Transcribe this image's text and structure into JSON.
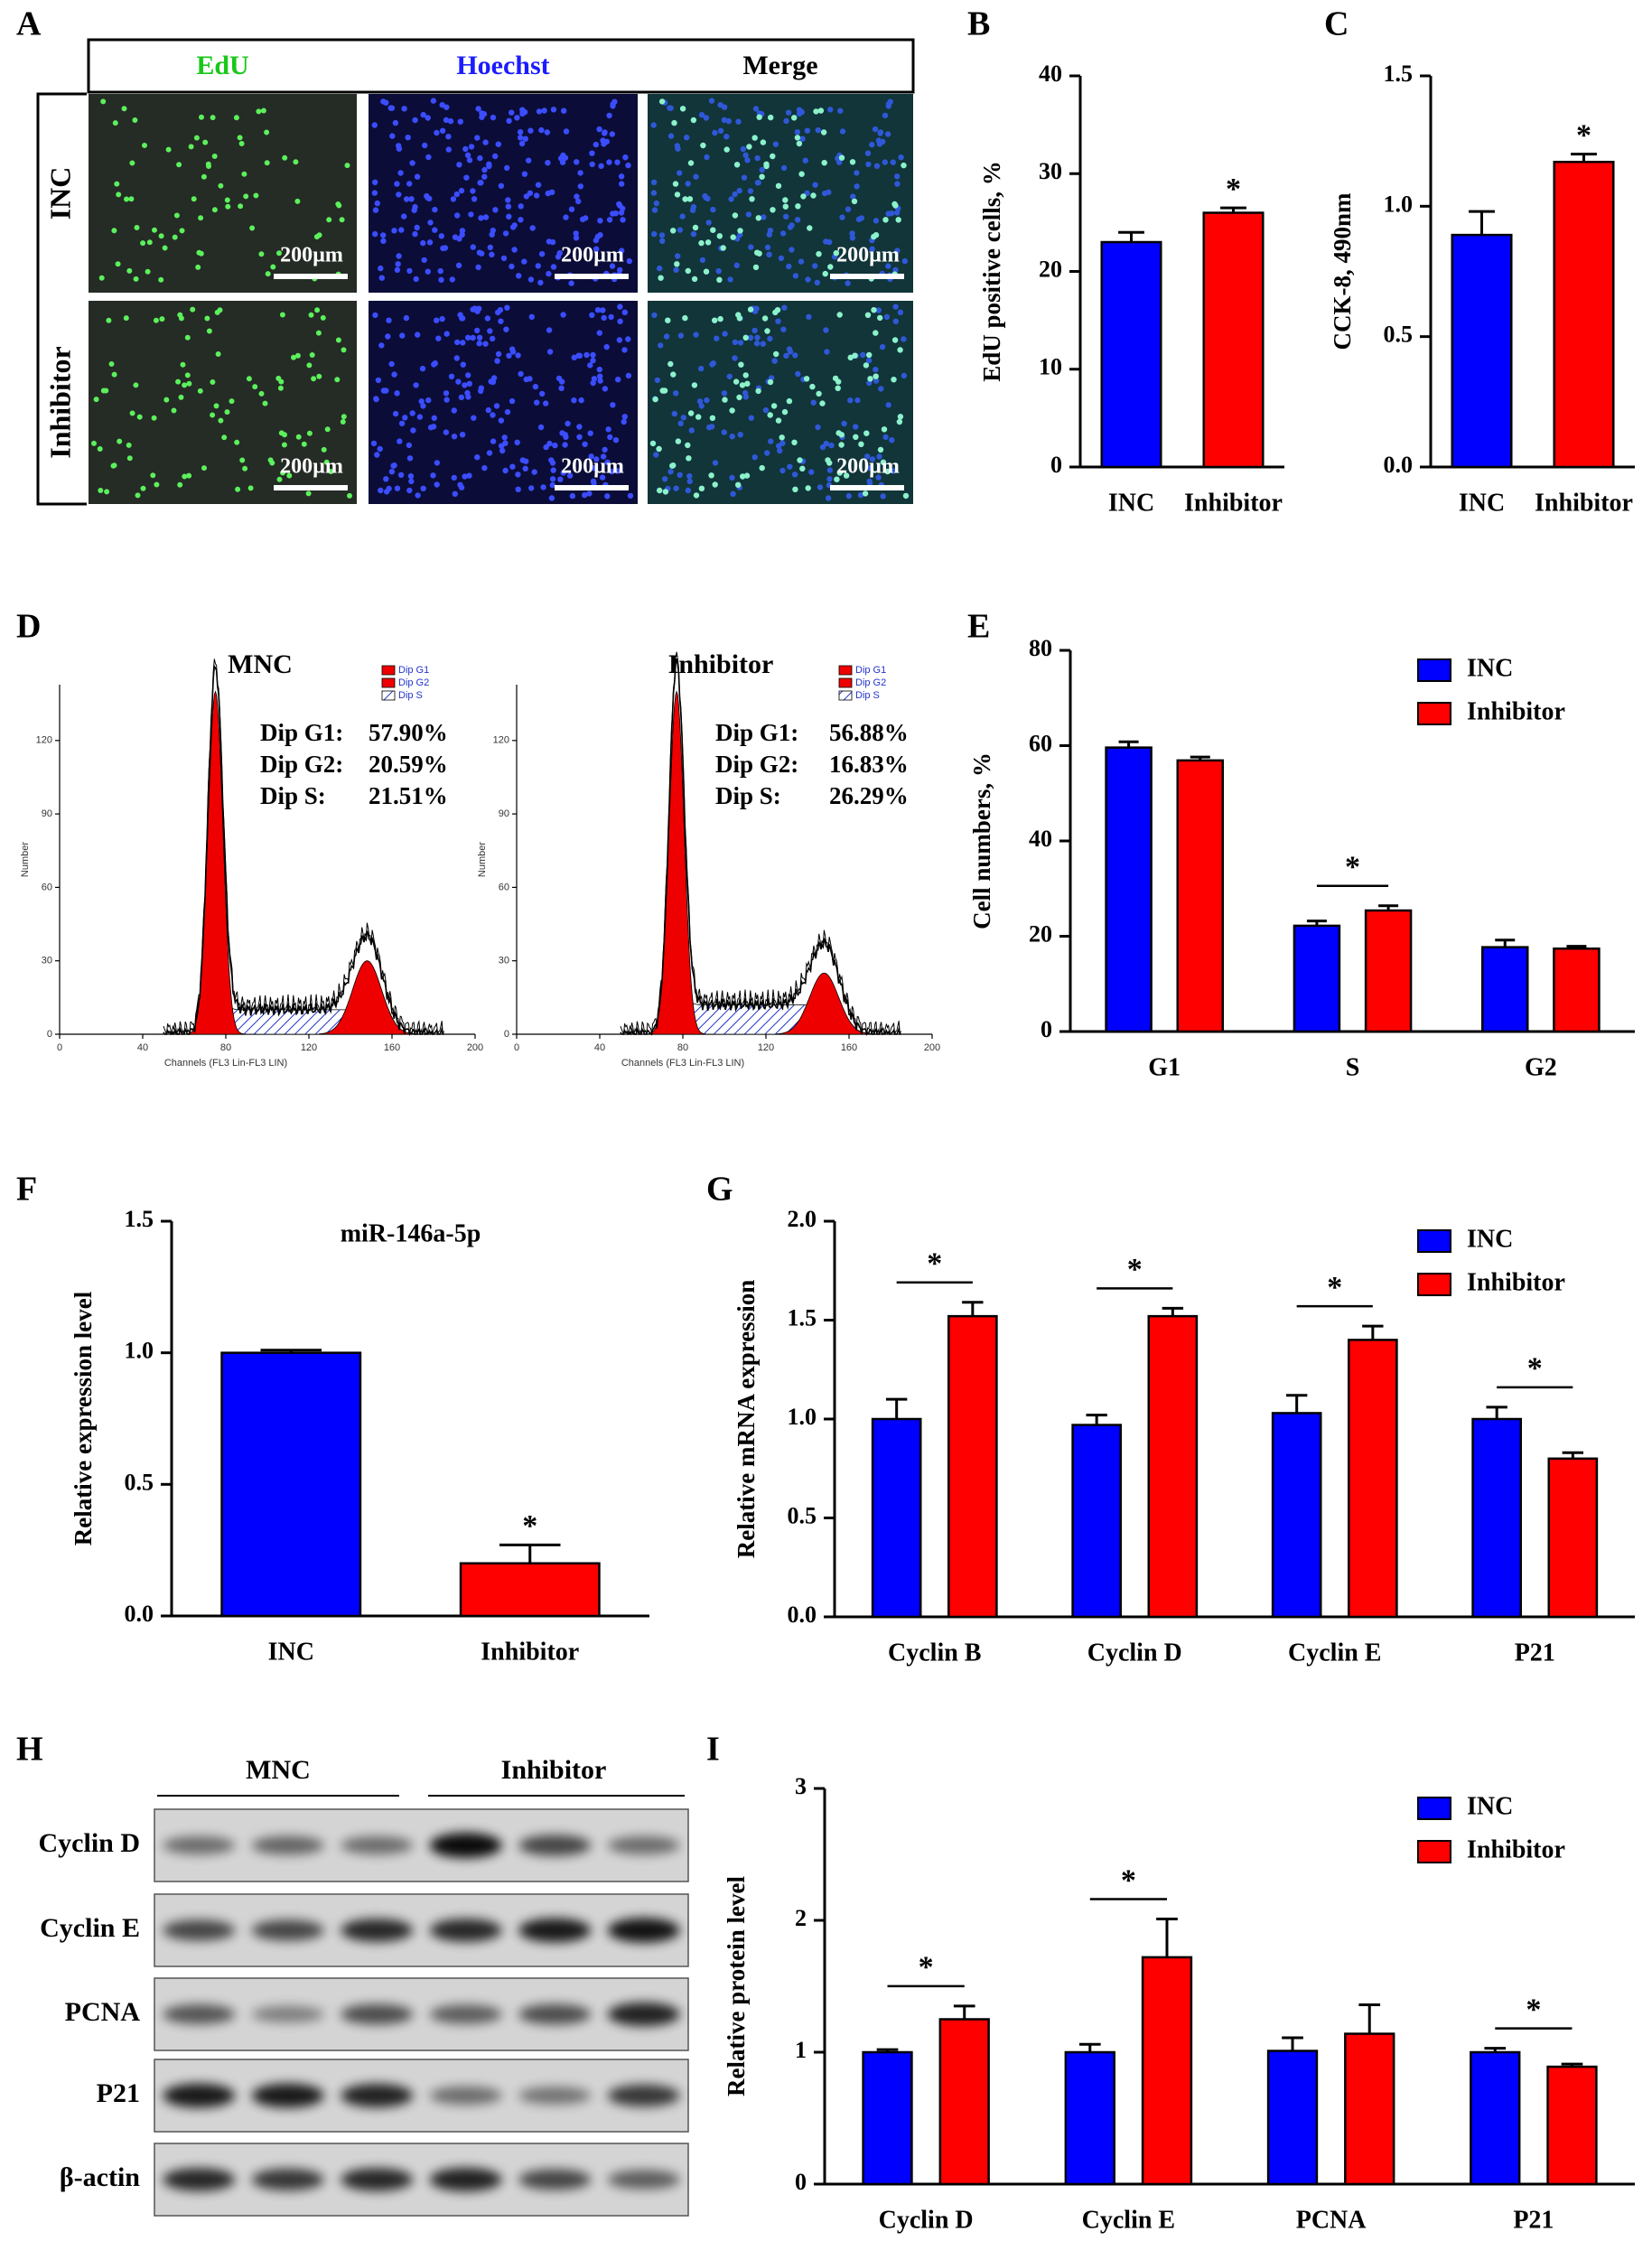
{
  "panel_labels": [
    "A",
    "B",
    "C",
    "D",
    "E",
    "F",
    "G",
    "H",
    "I"
  ],
  "panel_a": {
    "columns": [
      "EdU",
      "Hoechst",
      "Merge"
    ],
    "rows": [
      "INC",
      "Inhibitor"
    ],
    "scale_bar": "200µm"
  },
  "panel_d": {
    "plots": [
      {
        "title": "MNC",
        "stats": [
          {
            "label": "Dip G1:",
            "value": "57.90%"
          },
          {
            "label": "Dip G2:",
            "value": "20.59%"
          },
          {
            "label": "Dip S:",
            "value": "21.51%"
          }
        ]
      },
      {
        "title": "Inhibitor",
        "stats": [
          {
            "label": "Dip G1:",
            "value": "56.88%"
          },
          {
            "label": "Dip G2:",
            "value": "16.83%"
          },
          {
            "label": "Dip S:",
            "value": "26.29%"
          }
        ]
      }
    ],
    "legend": [
      "Dip G1",
      "Dip G2",
      "Dip S"
    ],
    "x_label": "Channels (FL3 Lin-FL3 LIN)",
    "y_label": "Number",
    "xticks": [
      0,
      40,
      80,
      120,
      160,
      200
    ],
    "yticks": [
      0,
      30,
      60,
      90,
      120
    ]
  },
  "panel_h": {
    "groups": [
      "MNC",
      "Inhibitor"
    ],
    "rows": [
      "Cyclin D",
      "Cyclin E",
      "PCNA",
      "P21",
      "β-actin"
    ]
  },
  "chart_data": [
    {
      "type": "bar",
      "y_label": "EdU positive cells, %",
      "categories": [
        "INC",
        "Inhibitor"
      ],
      "values": [
        23,
        26
      ],
      "errors": [
        1,
        0.5
      ],
      "colors": [
        "#0000ff",
        "#ff0000"
      ],
      "ylim": [
        0,
        40
      ],
      "yticks": [
        0,
        10,
        20,
        30,
        40
      ],
      "annotations": [
        {
          "text": "*",
          "category": "Inhibitor"
        }
      ]
    },
    {
      "type": "bar",
      "y_label": "CCK-8, 490nm",
      "categories": [
        "INC",
        "Inhibitor"
      ],
      "values": [
        0.89,
        1.17
      ],
      "errors": [
        0.09,
        0.03
      ],
      "colors": [
        "#0000ff",
        "#ff0000"
      ],
      "ylim": [
        0,
        1.5
      ],
      "yticks": [
        {
          "value": 0,
          "label": "0.0"
        },
        0.5,
        {
          "value": 1,
          "label": "1.0"
        },
        1.5
      ],
      "annotations": [
        {
          "text": "*",
          "category": "Inhibitor"
        }
      ]
    },
    {
      "type": "bar",
      "y_label": "Cell numbers, %",
      "categories": [
        "G1",
        "S",
        "G2"
      ],
      "series": [
        {
          "name": "INC",
          "color": "#0000ff",
          "values": [
            59.6,
            22.2,
            17.7
          ],
          "errors": [
            1.2,
            1,
            1.5
          ]
        },
        {
          "name": "Inhibitor",
          "color": "#ff0000",
          "values": [
            56.9,
            25.4,
            17.4
          ],
          "errors": [
            0.7,
            1,
            0.5
          ]
        }
      ],
      "ylim": [
        0,
        80
      ],
      "yticks": [
        0,
        20,
        40,
        60,
        80
      ],
      "legend": "upper right",
      "annotations": [
        {
          "text": "*",
          "category": "S"
        }
      ]
    },
    {
      "type": "bar",
      "title": "miR-146a-5p",
      "y_label": "Relative expression level",
      "categories": [
        "INC",
        "Inhibitor"
      ],
      "values": [
        1.0,
        0.2
      ],
      "errors": [
        0.01,
        0.07
      ],
      "colors": [
        "#0000ff",
        "#ff0000"
      ],
      "ylim": [
        0,
        1.5
      ],
      "yticks": [
        {
          "value": 0,
          "label": "0.0"
        },
        0.5,
        {
          "value": 1,
          "label": "1.0"
        },
        1.5
      ],
      "annotations": [
        {
          "text": "*",
          "category": "Inhibitor"
        }
      ]
    },
    {
      "type": "bar",
      "y_label": "Relative mRNA expression",
      "categories": [
        "Cyclin B",
        "Cyclin D",
        "Cyclin E",
        "P21"
      ],
      "series": [
        {
          "name": "INC",
          "color": "#0000ff",
          "values": [
            1.0,
            0.97,
            1.03,
            1.0
          ],
          "errors": [
            0.1,
            0.05,
            0.09,
            0.06
          ]
        },
        {
          "name": "Inhibitor",
          "color": "#ff0000",
          "values": [
            1.52,
            1.52,
            1.4,
            0.8
          ],
          "errors": [
            0.07,
            0.04,
            0.07,
            0.03
          ]
        }
      ],
      "ylim": [
        0,
        2
      ],
      "yticks": [
        {
          "value": 0,
          "label": "0.0"
        },
        0.5,
        {
          "value": 1,
          "label": "1.0"
        },
        1.5,
        {
          "value": 2,
          "label": "2.0"
        }
      ],
      "legend": "upper right",
      "annotations": [
        {
          "text": "*",
          "category": "Cyclin B"
        },
        {
          "text": "*",
          "category": "Cyclin D"
        },
        {
          "text": "*",
          "category": "Cyclin E"
        },
        {
          "text": "*",
          "category": "P21"
        }
      ]
    },
    {
      "type": "bar",
      "y_label": "Relative protein level",
      "categories": [
        "Cyclin D",
        "Cyclin E",
        "PCNA",
        "P21"
      ],
      "series": [
        {
          "name": "INC",
          "color": "#0000ff",
          "values": [
            1.0,
            1.0,
            1.01,
            1.0
          ],
          "errors": [
            0.02,
            0.06,
            0.1,
            0.03
          ]
        },
        {
          "name": "Inhibitor",
          "color": "#ff0000",
          "values": [
            1.25,
            1.72,
            1.14,
            0.89
          ],
          "errors": [
            0.1,
            0.29,
            0.22,
            0.02
          ]
        }
      ],
      "ylim": [
        0,
        3
      ],
      "yticks": [
        0,
        1,
        2,
        3
      ],
      "legend": "upper right",
      "annotations": [
        {
          "text": "*",
          "category": "Cyclin D"
        },
        {
          "text": "*",
          "category": "Cyclin E"
        },
        {
          "text": "*",
          "category": "P21"
        }
      ]
    }
  ]
}
